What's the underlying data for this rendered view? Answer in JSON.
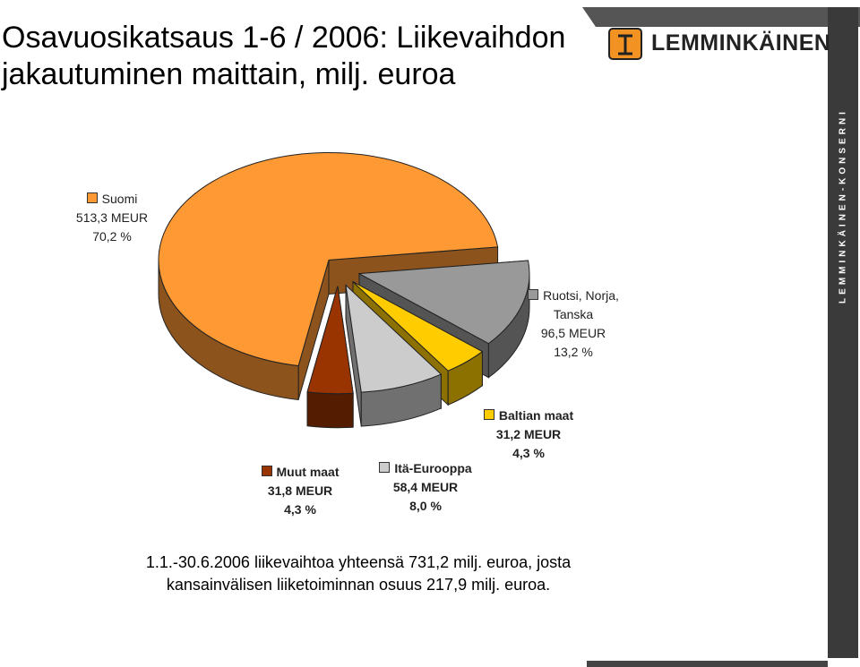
{
  "chart_data": {
    "type": "pie",
    "title": "Osavuosikatsaus 1-6 / 2006: Liikevaihdon jakautuminen maittain, milj. euroa",
    "categories": [
      "Ruotsi, Norja, Tanska",
      "Baltian maat",
      "Itä-Eurooppa",
      "Muut maat",
      "Suomi"
    ],
    "values": [
      13.2,
      4.3,
      8.0,
      4.3,
      70.2
    ],
    "value_labels": [
      "13,2 %",
      "4,3 %",
      "8,0 %",
      "4,3 %",
      "70,2 %"
    ],
    "amounts": [
      96.5,
      31.2,
      58.4,
      31.8,
      513.3
    ],
    "amount_labels": [
      "96,5 MEUR",
      "31,2 MEUR",
      "58,4 MEUR",
      "31,8 MEUR",
      "513,3 MEUR"
    ],
    "colors": [
      "#999999",
      "#ffcc00",
      "#cccccc",
      "#993300",
      "#ff9933"
    ],
    "footnote": "1.1.-30.6.2006 liikevaihtoa yhteensä 731,2 milj. euroa, josta kansainvälisen liiketoiminnan osuus 217,9 milj. euroa."
  },
  "logo": {
    "name": "LEMMINKÄINEN",
    "group": "LEMMINKÄINEN-KONSERNI"
  }
}
